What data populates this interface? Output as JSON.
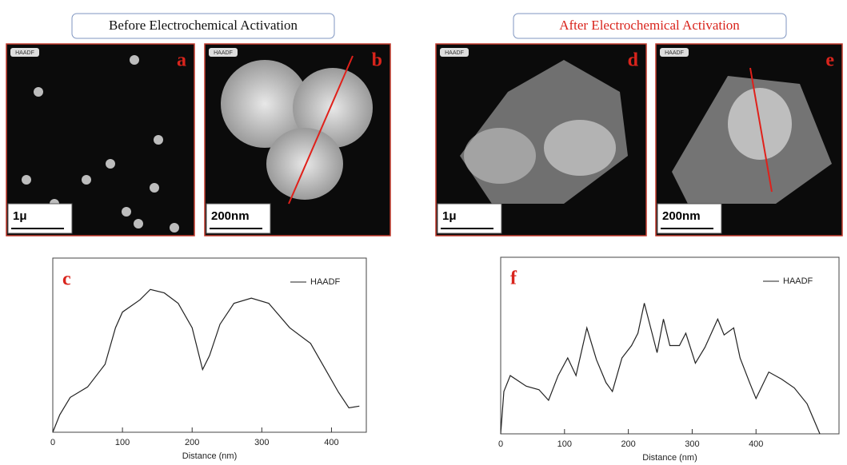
{
  "header": {
    "before": "Before Electrochemical Activation",
    "after": "After Electrochemical Activation"
  },
  "panels": [
    {
      "label": "a",
      "tag": "HAADF",
      "scale": "1μ"
    },
    {
      "label": "b",
      "tag": "HAADF",
      "scale": "200nm"
    },
    {
      "label": "d",
      "tag": "HAADF",
      "scale": "1μ"
    },
    {
      "label": "e",
      "tag": "HAADF",
      "scale": "200nm"
    }
  ],
  "chart_data": [
    {
      "type": "line",
      "panel_label": "c",
      "x_label": "Distance (nm)",
      "x": [
        0,
        10,
        25,
        50,
        75,
        90,
        100,
        125,
        140,
        160,
        180,
        200,
        215,
        225,
        240,
        260,
        285,
        310,
        340,
        370,
        390,
        410,
        425,
        440
      ],
      "series": [
        {
          "name": "HAADF",
          "color": "#222222",
          "values": [
            0,
            10,
            20,
            26,
            39,
            60,
            69,
            76,
            82,
            80,
            74,
            60,
            36,
            44,
            62,
            74,
            77,
            74,
            60,
            51,
            37,
            23,
            14,
            15
          ]
        }
      ],
      "xlim": [
        0,
        450
      ],
      "ylim": [
        0,
        100
      ],
      "xticks": [
        0,
        100,
        200,
        300,
        400
      ]
    },
    {
      "type": "line",
      "panel_label": "f",
      "x_label": "Distance (nm)",
      "x": [
        0,
        5,
        15,
        40,
        60,
        75,
        90,
        105,
        118,
        135,
        150,
        165,
        175,
        190,
        205,
        215,
        225,
        235,
        245,
        255,
        265,
        280,
        290,
        305,
        320,
        340,
        350,
        365,
        375,
        390,
        400,
        420,
        440,
        460,
        480,
        500
      ],
      "series": [
        {
          "name": "HAADF",
          "color": "#222222",
          "values": [
            0,
            24,
            33,
            27,
            25,
            19,
            33,
            43,
            33,
            60,
            42,
            29,
            24,
            43,
            50,
            57,
            74,
            60,
            46,
            65,
            50,
            50,
            57,
            40,
            49,
            65,
            56,
            60,
            43,
            29,
            20,
            35,
            31,
            26,
            17,
            0
          ]
        }
      ],
      "xlim": [
        0,
        530
      ],
      "ylim": [
        0,
        100
      ],
      "xticks": [
        0,
        100,
        200,
        300,
        400
      ]
    }
  ]
}
